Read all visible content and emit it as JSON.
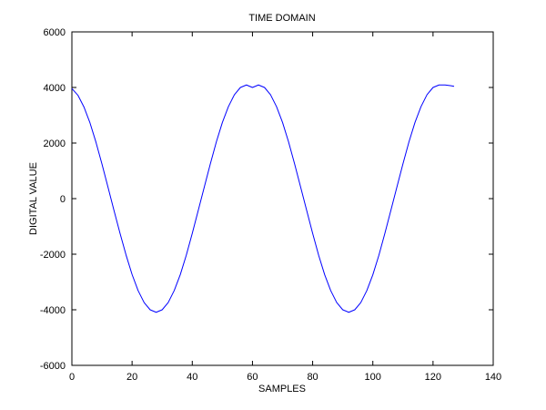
{
  "chart_data": {
    "type": "line",
    "title": "TIME DOMAIN",
    "xlabel": "SAMPLES",
    "ylabel": "DIGITAL VALUE",
    "xlim": [
      0,
      140
    ],
    "ylim": [
      -6000,
      6000
    ],
    "xticks": [
      0,
      20,
      40,
      60,
      80,
      100,
      120,
      140
    ],
    "yticks": [
      -6000,
      -4000,
      -2000,
      0,
      2000,
      4000,
      6000
    ],
    "grid": false,
    "legend": "none",
    "series": [
      {
        "color": "#0000ff",
        "x": [
          0,
          2,
          4,
          6,
          8,
          10,
          12,
          14,
          16,
          18,
          20,
          22,
          24,
          26,
          28,
          30,
          32,
          34,
          36,
          38,
          40,
          42,
          44,
          46,
          48,
          50,
          52,
          54,
          56,
          58,
          60,
          62,
          64,
          66,
          68,
          70,
          72,
          74,
          76,
          78,
          80,
          82,
          84,
          86,
          88,
          90,
          92,
          94,
          96,
          98,
          100,
          102,
          104,
          106,
          108,
          110,
          112,
          114,
          116,
          118,
          120,
          122,
          124,
          126,
          127
        ],
        "y": [
          3960,
          3720,
          3300,
          2730,
          2030,
          1240,
          410,
          -430,
          -1250,
          -2030,
          -2730,
          -3310,
          -3740,
          -4000,
          -4090,
          -4000,
          -3740,
          -3310,
          -2740,
          -2040,
          -1250,
          -420,
          420,
          1250,
          2040,
          2740,
          3310,
          3740,
          4000,
          4090,
          4000,
          4090,
          4000,
          3740,
          3310,
          2740,
          2040,
          1250,
          420,
          -420,
          -1250,
          -2040,
          -2740,
          -3310,
          -3740,
          -4000,
          -4090,
          -4000,
          -3740,
          -3310,
          -2740,
          -2040,
          -1250,
          -420,
          420,
          1250,
          2040,
          2740,
          3310,
          3740,
          4000,
          4090,
          4090,
          4060,
          4040
        ]
      }
    ]
  }
}
